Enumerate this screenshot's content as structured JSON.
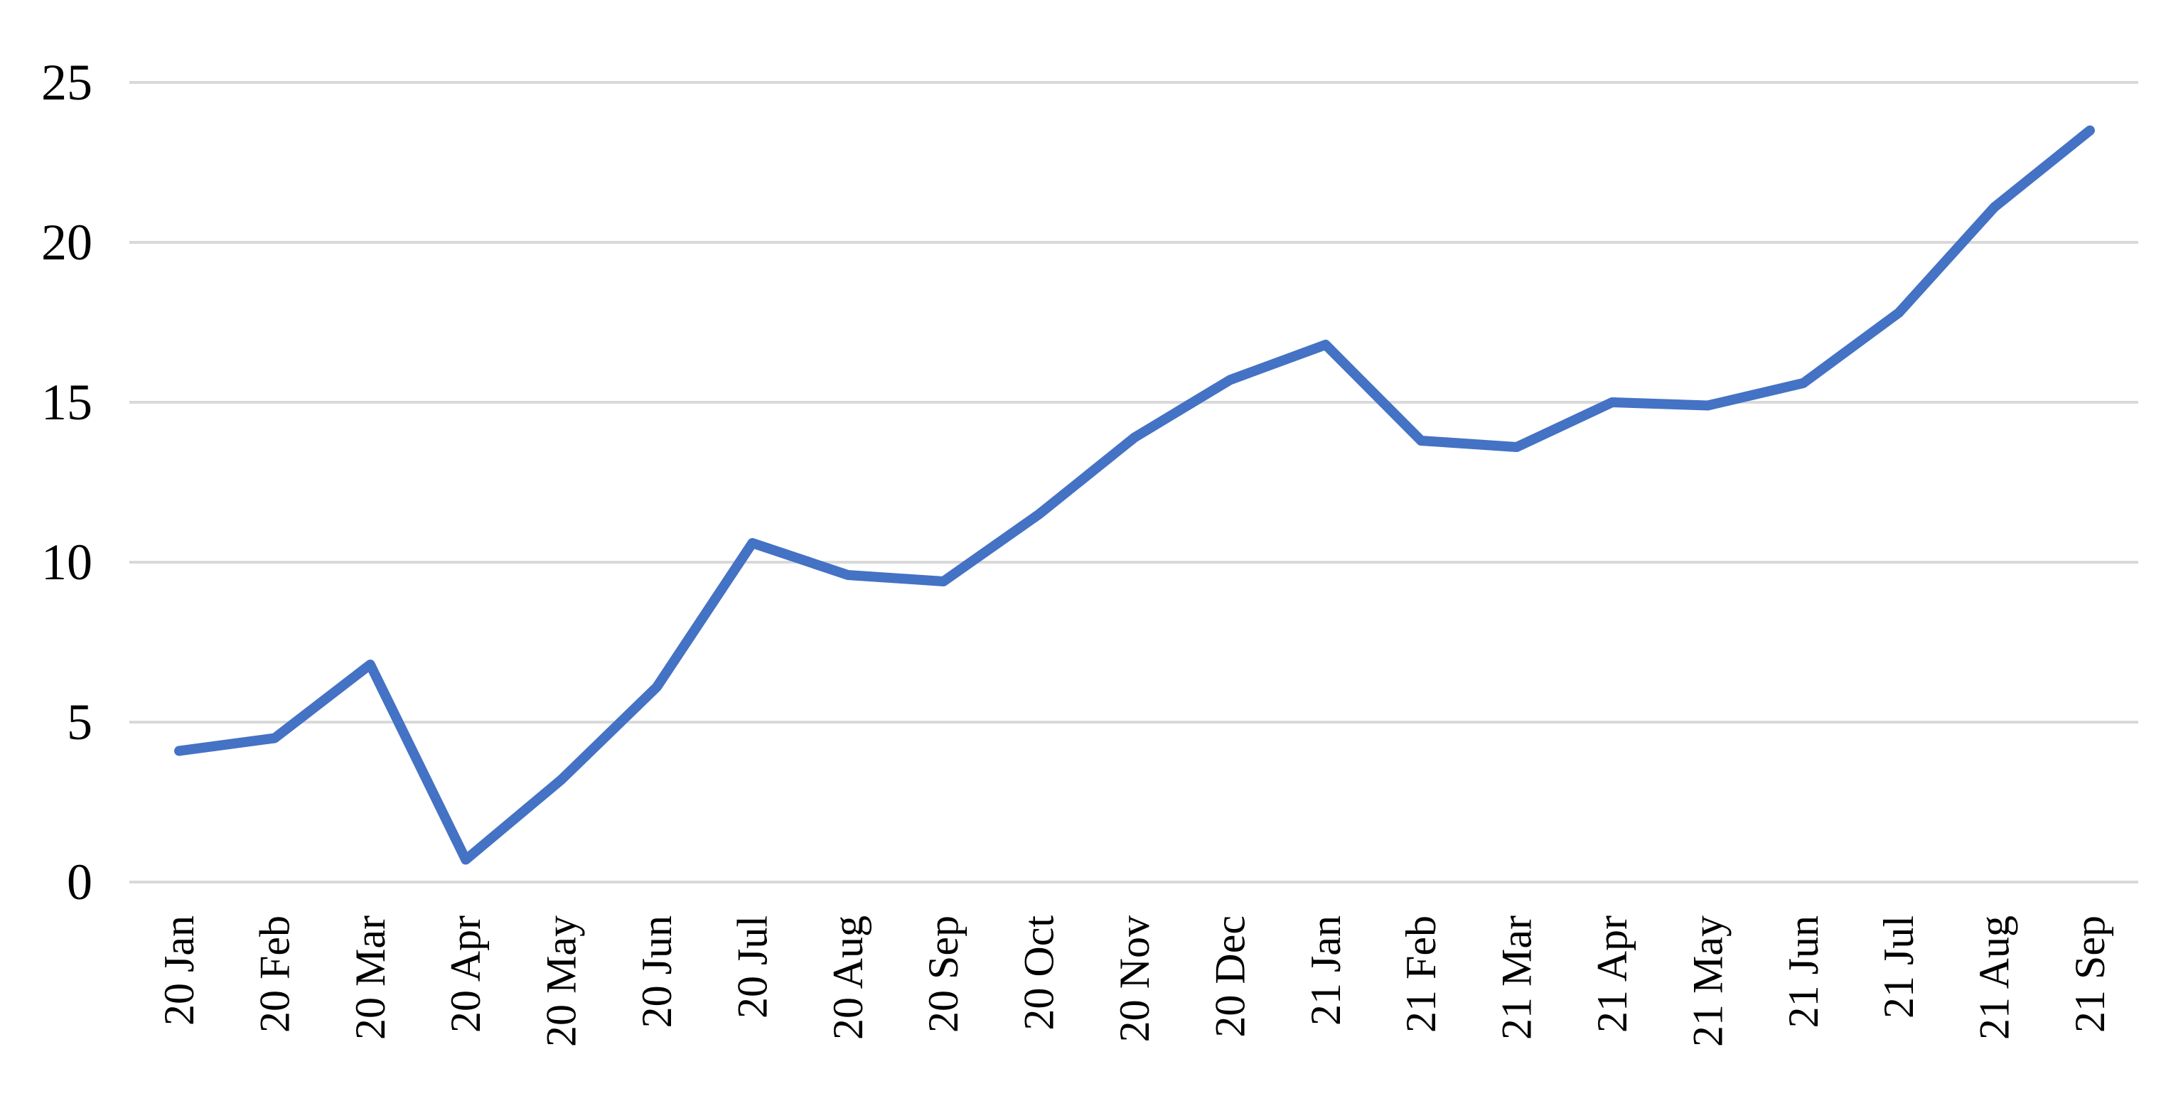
{
  "chart_data": {
    "type": "line",
    "title": "",
    "xlabel": "",
    "ylabel": "",
    "categories": [
      "20 Jan",
      "20 Feb",
      "20 Mar",
      "20 Apr",
      "20 May",
      "20 Jun",
      "20 Jul",
      "20 Aug",
      "20 Sep",
      "20 Oct",
      "20 Nov",
      "20 Dec",
      "21 Jan",
      "21 Feb",
      "21 Mar",
      "21 Apr",
      "21 May",
      "21 Jun",
      "21 Jul",
      "21 Aug",
      "21 Sep"
    ],
    "series": [
      {
        "name": "",
        "values": [
          4.1,
          4.5,
          6.8,
          0.7,
          3.2,
          6.1,
          10.6,
          9.6,
          9.4,
          11.5,
          13.9,
          15.7,
          16.8,
          13.8,
          13.6,
          15.0,
          14.9,
          15.6,
          17.8,
          21.1,
          23.5
        ]
      }
    ],
    "ylim": [
      0,
      25
    ],
    "yticks": [
      0,
      5,
      10,
      15,
      20,
      25
    ],
    "grid": "horizontal",
    "legend": "none",
    "x_label_rotation_degrees": 90
  },
  "colors": {
    "series_line": "#4472C4",
    "gridline": "#D9D9D9",
    "tick_label": "#000000",
    "background": "#FFFFFF"
  }
}
